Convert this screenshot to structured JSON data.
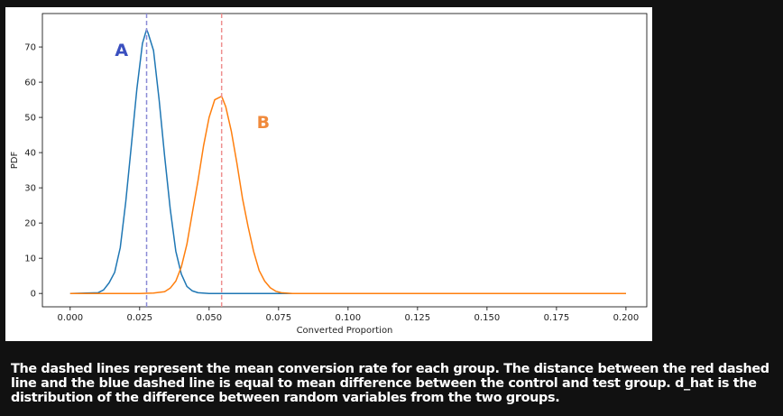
{
  "chart_data": {
    "type": "line",
    "xlabel": "Converted Proportion",
    "ylabel": "PDF",
    "xlim": [
      -0.01,
      0.2075
    ],
    "ylim": [
      -3.8,
      79.5
    ],
    "x_ticks": [
      "0.000",
      "0.025",
      "0.050",
      "0.075",
      "0.100",
      "0.125",
      "0.150",
      "0.175",
      "0.200"
    ],
    "x_tick_values": [
      0,
      0.025,
      0.05,
      0.075,
      0.1,
      0.125,
      0.15,
      0.175,
      0.2
    ],
    "y_ticks": [
      "0",
      "10",
      "20",
      "30",
      "40",
      "50",
      "60",
      "70"
    ],
    "y_tick_values": [
      0,
      10,
      20,
      30,
      40,
      50,
      60,
      70
    ],
    "grid": false,
    "series": [
      {
        "color": "#1f77b4",
        "x": [
          0,
          0.01,
          0.012,
          0.014,
          0.016,
          0.018,
          0.02,
          0.022,
          0.024,
          0.026,
          0.0275,
          0.028,
          0.03,
          0.032,
          0.034,
          0.036,
          0.038,
          0.04,
          0.042,
          0.044,
          0.046,
          0.05,
          0.06,
          0.08,
          0.2
        ],
        "y": [
          0,
          0.2,
          1,
          3,
          6,
          13,
          26,
          42,
          58,
          71,
          75,
          74,
          69,
          55,
          39,
          24,
          12,
          5.5,
          2,
          0.7,
          0.2,
          0,
          0,
          0,
          0
        ]
      },
      {
        "color": "#ff7f0e",
        "x": [
          0,
          0.025,
          0.03,
          0.034,
          0.036,
          0.038,
          0.04,
          0.042,
          0.044,
          0.046,
          0.048,
          0.05,
          0.052,
          0.0545,
          0.056,
          0.058,
          0.06,
          0.062,
          0.064,
          0.066,
          0.068,
          0.07,
          0.072,
          0.074,
          0.076,
          0.08,
          0.09,
          0.2
        ],
        "y": [
          0,
          0,
          0.1,
          0.5,
          1.5,
          3.5,
          7.5,
          14,
          23,
          32,
          42,
          50,
          55,
          56,
          53,
          46,
          37,
          27,
          19,
          12,
          6.5,
          3.5,
          1.6,
          0.6,
          0.2,
          0,
          0,
          0
        ]
      }
    ],
    "vlines": [
      {
        "x": 0.0275,
        "color": "#8b8bd6",
        "style": "dashed"
      },
      {
        "x": 0.0545,
        "color": "#ee8f8f",
        "style": "dashed"
      }
    ],
    "annotations": [
      {
        "text": "A",
        "x": 0.0185,
        "y": 67.5,
        "color": "#3a4fbf"
      },
      {
        "text": "B",
        "x": 0.0695,
        "y": 47,
        "color": "#f08a3c"
      }
    ]
  },
  "caption": "The dashed lines represent the mean conversion rate for each group. The distance between the red dashed line and the blue dashed line is equal to mean difference between the control and test group. d_hat is the distribution of the difference between random variables from the two groups."
}
